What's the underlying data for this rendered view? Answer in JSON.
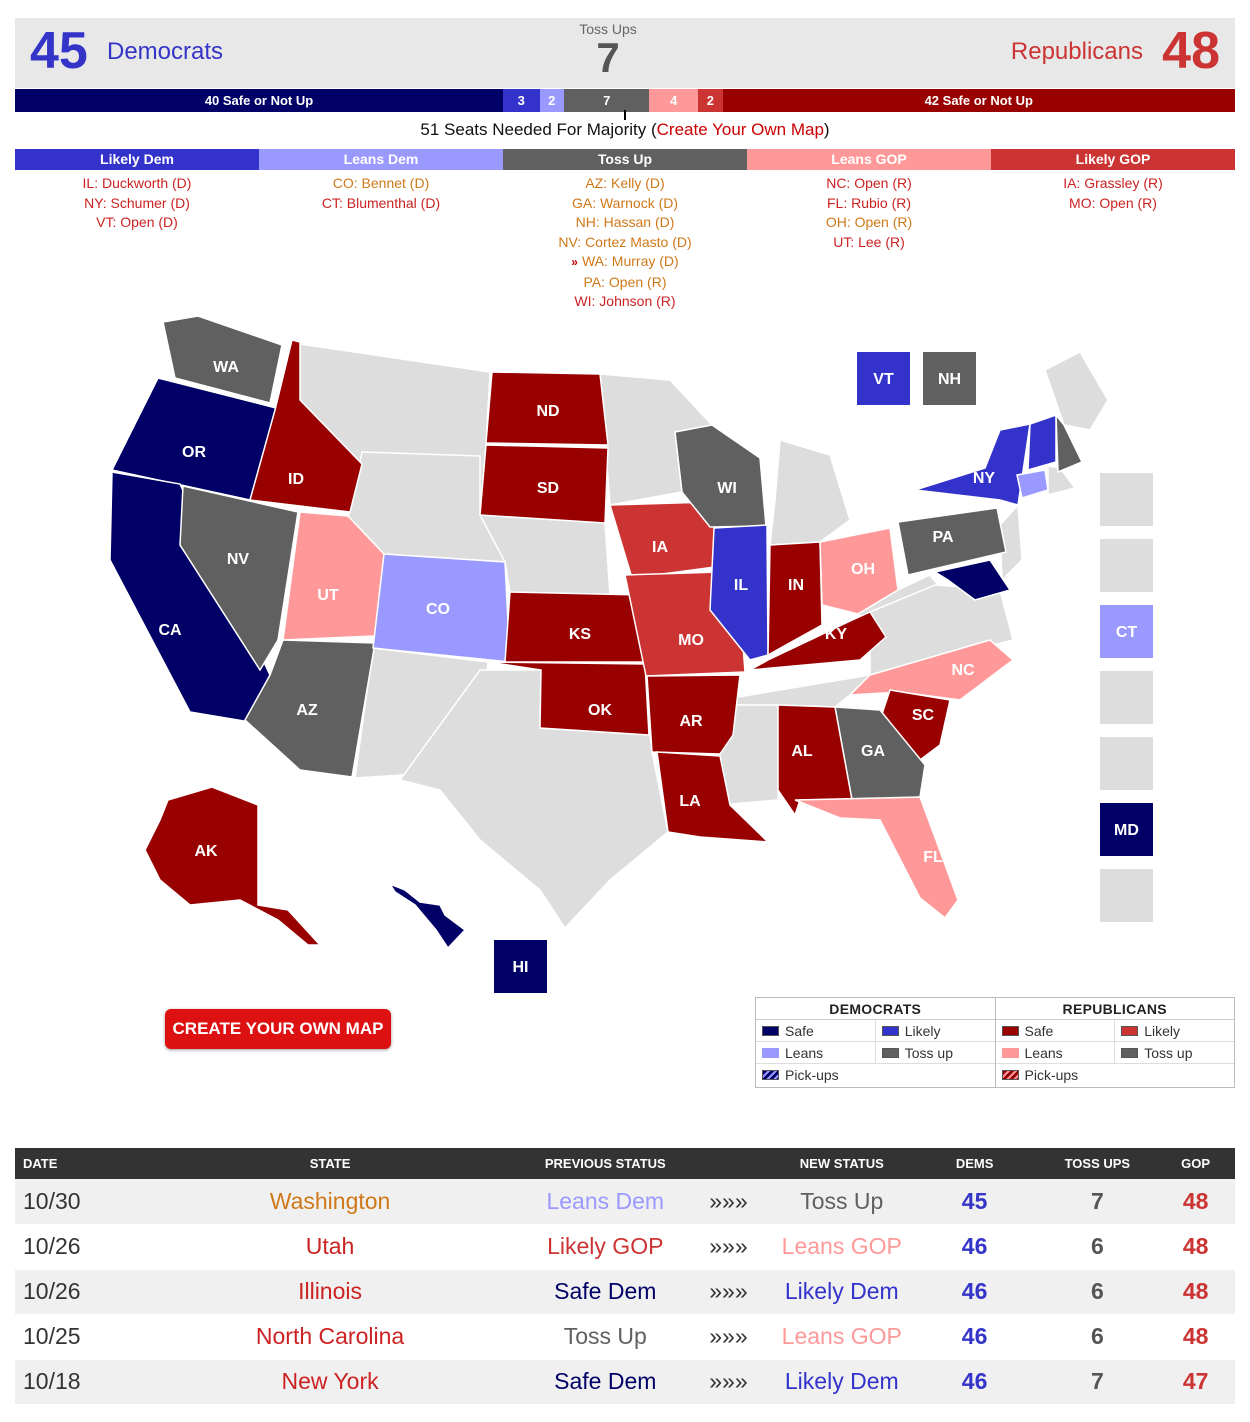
{
  "header": {
    "dem_count": "45",
    "dem_label": "Democrats",
    "toss_label": "Toss Ups",
    "toss_count": "7",
    "gop_label": "Republicans",
    "gop_count": "48"
  },
  "seatbar": [
    {
      "label": "40 Safe or Not Up",
      "seats": 40,
      "color": "#000066"
    },
    {
      "label": "3",
      "seats": 3,
      "color": "#3333cc"
    },
    {
      "label": "2",
      "seats": 2,
      "color": "#9999ff"
    },
    {
      "label": "7",
      "seats": 7,
      "color": "#606060"
    },
    {
      "label": "4",
      "seats": 4,
      "color": "#ff9999"
    },
    {
      "label": "2",
      "seats": 2,
      "color": "#cc3333"
    },
    {
      "label": "42 Safe or Not Up",
      "seats": 42,
      "color": "#990000"
    }
  ],
  "majority": {
    "text": "51 Seats Needed For Majority (",
    "link": "Create Your Own Map",
    "close": ")"
  },
  "categories": [
    {
      "name": "Likely Dem",
      "color": "#3333cc",
      "races": [
        {
          "text": "IL: Duckworth (D)",
          "tone": "r"
        },
        {
          "text": "NY: Schumer (D)",
          "tone": "r"
        },
        {
          "text": "VT: Open (D)",
          "tone": "r"
        }
      ]
    },
    {
      "name": "Leans Dem",
      "color": "#9999ff",
      "races": [
        {
          "text": "CO: Bennet (D)",
          "tone": "o"
        },
        {
          "text": "CT: Blumenthal (D)",
          "tone": "r"
        }
      ]
    },
    {
      "name": "Toss Up",
      "color": "#606060",
      "races": [
        {
          "text": "AZ: Kelly (D)",
          "tone": "o"
        },
        {
          "text": "GA: Warnock (D)",
          "tone": "o"
        },
        {
          "text": "NH: Hassan (D)",
          "tone": "o"
        },
        {
          "text": "NV: Cortez Masto (D)",
          "tone": "o"
        },
        {
          "text": "WA: Murray (D)",
          "tone": "o",
          "pickup": "»"
        },
        {
          "text": "PA: Open (R)",
          "tone": "o"
        },
        {
          "text": "WI: Johnson (R)",
          "tone": "r"
        }
      ]
    },
    {
      "name": "Leans GOP",
      "color": "#ff9999",
      "races": [
        {
          "text": "NC: Open (R)",
          "tone": "r"
        },
        {
          "text": "FL: Rubio (R)",
          "tone": "r"
        },
        {
          "text": "OH: Open (R)",
          "tone": "o"
        },
        {
          "text": "UT: Lee (R)",
          "tone": "r"
        }
      ]
    },
    {
      "name": "Likely GOP",
      "color": "#cc3333",
      "races": [
        {
          "text": "IA: Grassley (R)",
          "tone": "r"
        },
        {
          "text": "MO: Open (R)",
          "tone": "r"
        }
      ]
    }
  ],
  "colors": {
    "safe_dem": "#000066",
    "likely_dem": "#3333cc",
    "leans_dem": "#9999ff",
    "toss": "#606060",
    "leans_gop": "#ff9999",
    "likely_gop": "#cc3333",
    "safe_gop": "#990000",
    "none": "#dddddd"
  },
  "map_labels": {
    "WA": "WA",
    "OR": "OR",
    "CA": "CA",
    "ID": "ID",
    "NV": "NV",
    "UT": "UT",
    "AZ": "AZ",
    "CO": "CO",
    "ND": "ND",
    "SD": "SD",
    "KS": "KS",
    "OK": "OK",
    "IA": "IA",
    "MO": "MO",
    "AR": "AR",
    "LA": "LA",
    "WI": "WI",
    "IL": "IL",
    "IN": "IN",
    "OH": "OH",
    "KY": "KY",
    "PA": "PA",
    "NY": "NY",
    "NC": "NC",
    "SC": "SC",
    "GA": "GA",
    "AL": "AL",
    "FL": "FL",
    "AK": "AK",
    "HI": "HI",
    "VT": "VT",
    "NH": "NH",
    "CT": "CT",
    "MD": "MD"
  },
  "cta_label": "CREATE YOUR OWN MAP",
  "legend": {
    "dem_head": "DEMOCRATS",
    "gop_head": "REPUBLICANS",
    "safe": "Safe",
    "likely": "Likely",
    "leans": "Leans",
    "toss": "Toss up",
    "pickups": "Pick-ups"
  },
  "table": {
    "headers": [
      "DATE",
      "STATE",
      "PREVIOUS STATUS",
      "",
      "NEW STATUS",
      "DEMS",
      "TOSS UPS",
      "GOP"
    ],
    "rows": [
      {
        "date": "10/30",
        "state": "Washington",
        "state_color": "#d07818",
        "prev": "Leans Dem",
        "prev_color": "#9999ff",
        "arrow": "»»»",
        "new": "Toss Up",
        "new_color": "#606060",
        "dems": "45",
        "toss": "7",
        "gop": "48"
      },
      {
        "date": "10/26",
        "state": "Utah",
        "state_color": "#cc2222",
        "prev": "Likely GOP",
        "prev_color": "#cc3333",
        "arrow": "»»»",
        "new": "Leans GOP",
        "new_color": "#ff9999",
        "dems": "46",
        "toss": "6",
        "gop": "48"
      },
      {
        "date": "10/26",
        "state": "Illinois",
        "state_color": "#cc2222",
        "prev": "Safe Dem",
        "prev_color": "#000066",
        "arrow": "»»»",
        "new": "Likely Dem",
        "new_color": "#3333cc",
        "dems": "46",
        "toss": "6",
        "gop": "48"
      },
      {
        "date": "10/25",
        "state": "North Carolina",
        "state_color": "#cc2222",
        "prev": "Toss Up",
        "prev_color": "#606060",
        "arrow": "»»»",
        "new": "Leans GOP",
        "new_color": "#ff9999",
        "dems": "46",
        "toss": "6",
        "gop": "48"
      },
      {
        "date": "10/18",
        "state": "New York",
        "state_color": "#cc2222",
        "prev": "Safe Dem",
        "prev_color": "#000066",
        "arrow": "»»»",
        "new": "Likely Dem",
        "new_color": "#3333cc",
        "dems": "46",
        "toss": "7",
        "gop": "47"
      }
    ]
  }
}
